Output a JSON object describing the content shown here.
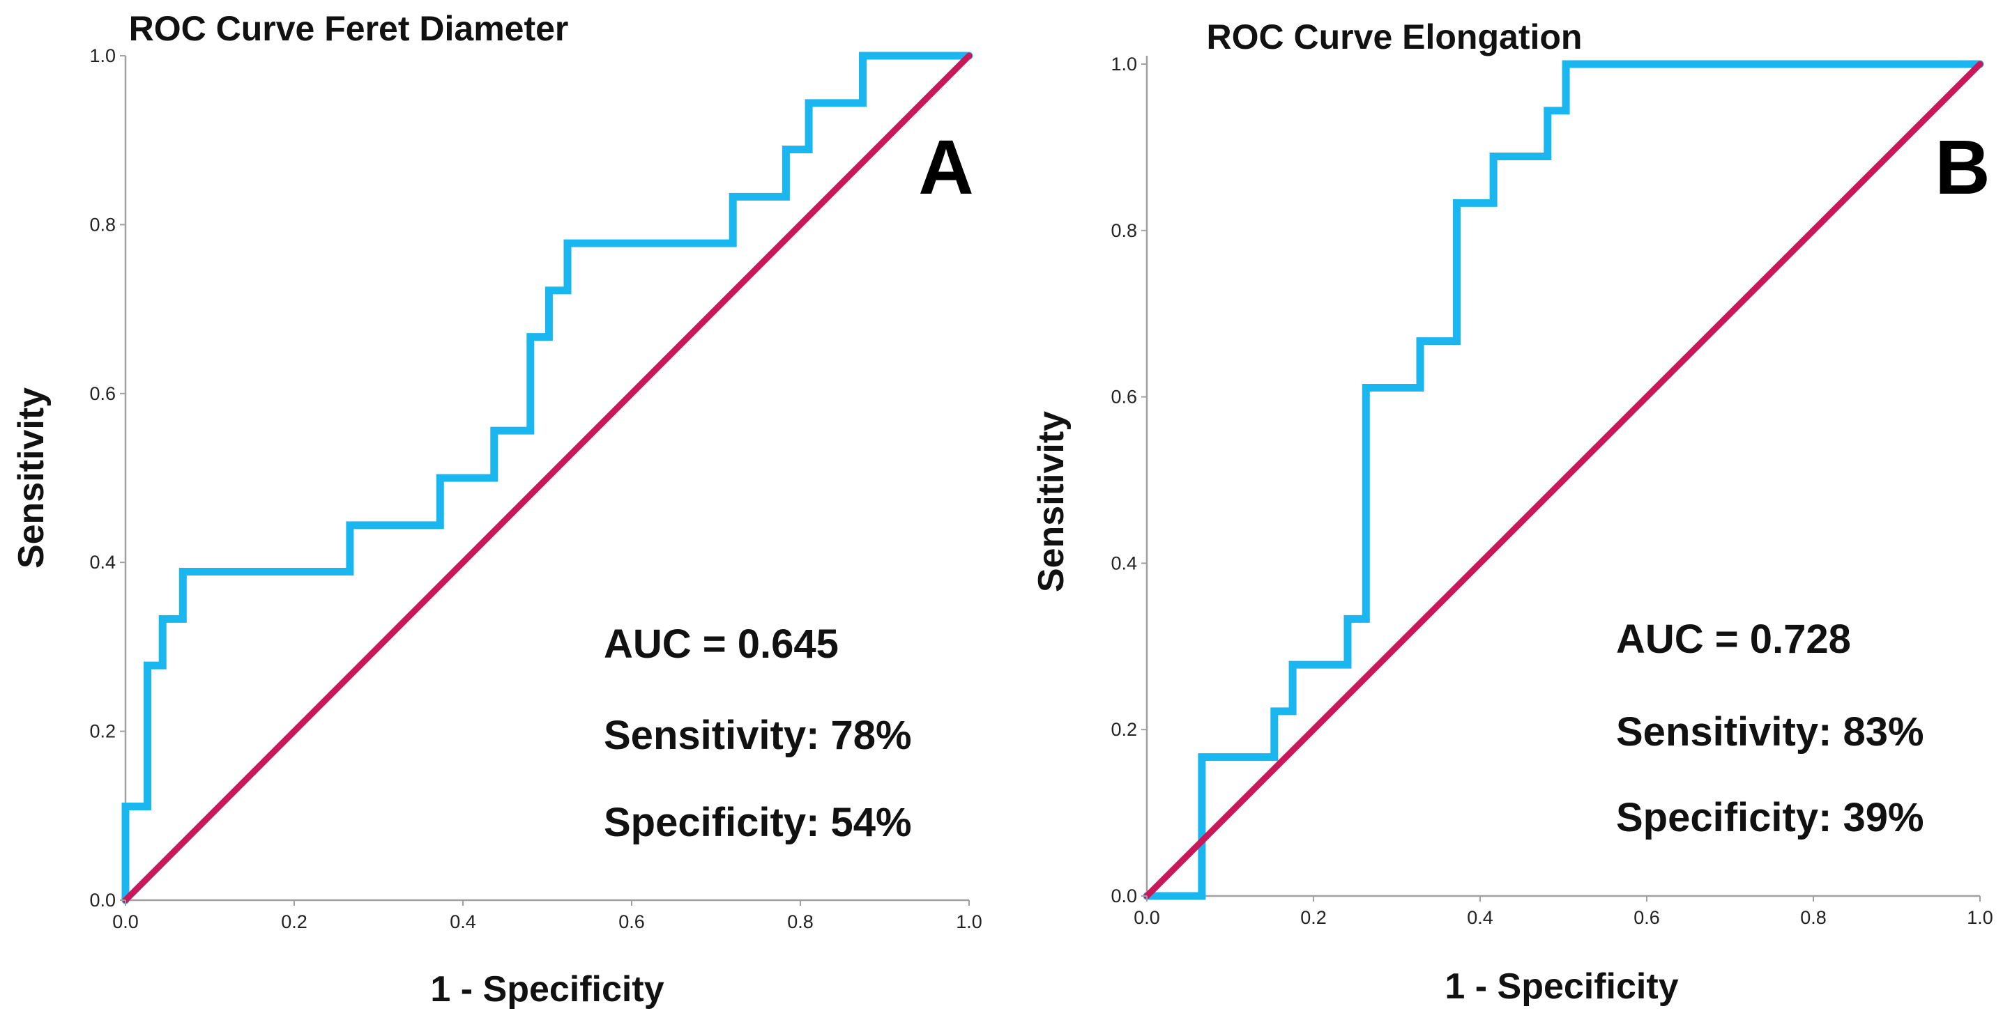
{
  "chart_data": [
    {
      "type": "line",
      "title": "ROC Curve Feret Diameter",
      "xlabel": "1 - Specificity",
      "ylabel": "Sensitivity",
      "xlim": [
        0,
        1
      ],
      "ylim": [
        0,
        1
      ],
      "x_ticks": [
        "0.0",
        "0.2",
        "0.4",
        "0.6",
        "0.8",
        "1.0"
      ],
      "y_ticks": [
        "0.0",
        "0.2",
        "0.4",
        "0.6",
        "0.8",
        "1.0"
      ],
      "panel_label": "A",
      "annotations": [
        "AUC = 0.645",
        "Sensitivity: 78%",
        "Specificity: 54%"
      ],
      "grid": false,
      "series": [
        {
          "color": "#1ab6f0",
          "style": "step",
          "x": [
            0.0,
            0.0,
            0.026,
            0.026,
            0.044,
            0.044,
            0.068,
            0.068,
            0.266,
            0.266,
            0.373,
            0.373,
            0.437,
            0.437,
            0.48,
            0.48,
            0.502,
            0.502,
            0.524,
            0.524,
            0.72,
            0.72,
            0.783,
            0.783,
            0.81,
            0.81,
            0.874,
            0.874,
            1.0
          ],
          "y": [
            0.0,
            0.111,
            0.111,
            0.278,
            0.278,
            0.333,
            0.333,
            0.389,
            0.389,
            0.444,
            0.444,
            0.5,
            0.5,
            0.556,
            0.556,
            0.667,
            0.667,
            0.722,
            0.722,
            0.778,
            0.778,
            0.833,
            0.833,
            0.889,
            0.889,
            0.944,
            0.944,
            1.0,
            1.0
          ]
        },
        {
          "color": "#c8185a",
          "style": "line",
          "x": [
            0,
            1
          ],
          "y": [
            0,
            1
          ]
        }
      ]
    },
    {
      "type": "line",
      "title": "ROC Curve Elongation",
      "xlabel": "1 - Specificity",
      "ylabel": "Sensitivity",
      "xlim": [
        0,
        1
      ],
      "ylim": [
        0,
        1
      ],
      "x_ticks": [
        "0.0",
        "0.2",
        "0.4",
        "0.6",
        "0.8",
        "1.0"
      ],
      "y_ticks": [
        "0.0",
        "0.2",
        "0.4",
        "0.6",
        "0.8",
        "1.0"
      ],
      "panel_label": "B",
      "annotations": [
        "AUC = 0.728",
        "Sensitivity: 83%",
        "Specificity: 39%"
      ],
      "grid": false,
      "series": [
        {
          "color": "#1ab6f0",
          "style": "step",
          "x": [
            0.0,
            0.066,
            0.066,
            0.153,
            0.153,
            0.175,
            0.175,
            0.241,
            0.241,
            0.263,
            0.263,
            0.328,
            0.328,
            0.372,
            0.372,
            0.416,
            0.416,
            0.481,
            0.481,
            0.503,
            0.503,
            1.0
          ],
          "y": [
            0.0,
            0.0,
            0.167,
            0.167,
            0.222,
            0.222,
            0.278,
            0.278,
            0.333,
            0.333,
            0.611,
            0.611,
            0.667,
            0.667,
            0.833,
            0.833,
            0.889,
            0.889,
            0.944,
            0.944,
            1.0,
            1.0
          ]
        },
        {
          "color": "#c8185a",
          "style": "line",
          "x": [
            0,
            1
          ],
          "y": [
            0,
            1
          ]
        }
      ]
    }
  ]
}
